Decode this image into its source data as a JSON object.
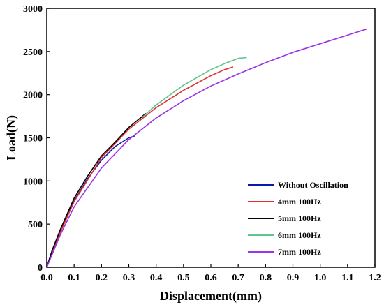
{
  "chart_data": {
    "type": "line",
    "xlabel": "Displacement(mm)",
    "ylabel": "Load(N)",
    "xlim": [
      0,
      1.2
    ],
    "ylim": [
      0,
      3000
    ],
    "xticks": [
      0.0,
      0.1,
      0.2,
      0.3,
      0.4,
      0.5,
      0.6,
      0.7,
      0.8,
      0.9,
      1.0,
      1.1,
      1.2
    ],
    "xtick_labels": [
      "0.0",
      "0.1",
      "0.2",
      "0.3",
      "0.4",
      "0.5",
      "0.6",
      "0.7",
      "0.8",
      "0.9",
      "1.0",
      "1.1",
      "1.2"
    ],
    "yticks": [
      0,
      500,
      1000,
      1500,
      2000,
      2500,
      3000
    ],
    "ytick_labels": [
      "0",
      "500",
      "1000",
      "1500",
      "2000",
      "2500",
      "3000"
    ],
    "grid": false,
    "legend_position": "bottom-right",
    "series": [
      {
        "name": "Without Oscillation",
        "color": "#0a1aa8",
        "x": [
          0.0,
          0.02,
          0.05,
          0.08,
          0.1,
          0.15,
          0.2,
          0.25,
          0.3,
          0.32
        ],
        "y": [
          0,
          190,
          420,
          640,
          770,
          1030,
          1240,
          1400,
          1500,
          1520
        ]
      },
      {
        "name": "4mm 100Hz",
        "color": "#e03030",
        "x": [
          0.0,
          0.05,
          0.1,
          0.2,
          0.3,
          0.4,
          0.5,
          0.6,
          0.65,
          0.68
        ],
        "y": [
          0,
          410,
          760,
          1270,
          1600,
          1850,
          2050,
          2220,
          2290,
          2320
        ]
      },
      {
        "name": "5mm 100Hz",
        "color": "#000000",
        "x": [
          0.0,
          0.02,
          0.05,
          0.1,
          0.15,
          0.2,
          0.25,
          0.3,
          0.35,
          0.36
        ],
        "y": [
          0,
          200,
          440,
          800,
          1060,
          1290,
          1450,
          1620,
          1750,
          1780
        ]
      },
      {
        "name": "6mm 100Hz",
        "color": "#5fc48e",
        "x": [
          0.35,
          0.4,
          0.5,
          0.6,
          0.65,
          0.7,
          0.73
        ],
        "y": [
          1740,
          1880,
          2110,
          2290,
          2360,
          2420,
          2430
        ]
      },
      {
        "name": "7mm 100Hz",
        "color": "#9a34e6",
        "x": [
          0.0,
          0.05,
          0.1,
          0.2,
          0.3,
          0.4,
          0.5,
          0.6,
          0.7,
          0.8,
          0.9,
          1.0,
          1.1,
          1.17
        ],
        "y": [
          0,
          380,
          700,
          1150,
          1480,
          1730,
          1930,
          2100,
          2240,
          2370,
          2490,
          2590,
          2690,
          2760
        ]
      }
    ]
  }
}
